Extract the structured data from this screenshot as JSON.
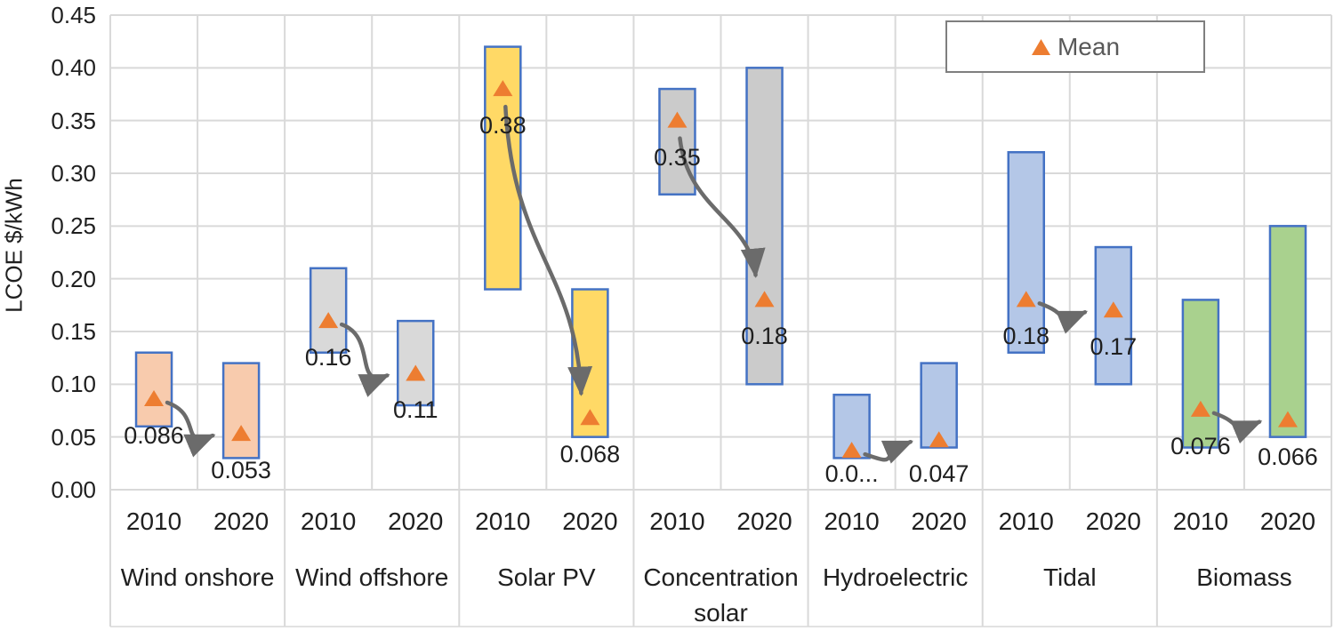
{
  "chart_data": {
    "type": "bar",
    "subtype": "floating-range-columns-with-mean-markers",
    "title": "",
    "ylabel": "LCOE $/kWh",
    "ylim": [
      0,
      0.45
    ],
    "ytick_step": 0.05,
    "ytick_labels": [
      "0.00",
      "0.05",
      "0.10",
      "0.15",
      "0.20",
      "0.25",
      "0.30",
      "0.35",
      "0.40",
      "0.45"
    ],
    "grid": true,
    "legend": {
      "label": "Mean",
      "position": "top-right",
      "marker": "triangle",
      "marker_color": "#ED7D31"
    },
    "years": [
      "2010",
      "2020"
    ],
    "colors": {
      "bar_border": "#4472C4",
      "mean_marker": "#ED7D31",
      "arrow": "#6B6B6B",
      "gridline": "#D9D9D9",
      "text": "#1F1F1F",
      "legend_text": "#595959",
      "legend_border": "#7F7F7F"
    },
    "mean_change_arrows": true,
    "categories": [
      {
        "label": "Wind onshore",
        "fill": "#F8CBAD",
        "bars": [
          {
            "year": "2010",
            "low": 0.06,
            "high": 0.13,
            "mean": 0.086,
            "mean_label": "0.086"
          },
          {
            "year": "2020",
            "low": 0.03,
            "high": 0.12,
            "mean": 0.053,
            "mean_label": "0.053"
          }
        ]
      },
      {
        "label": "Wind offshore",
        "fill": "#D9D9D9",
        "bars": [
          {
            "year": "2010",
            "low": 0.13,
            "high": 0.21,
            "mean": 0.16,
            "mean_label": "0.16"
          },
          {
            "year": "2020",
            "low": 0.08,
            "high": 0.16,
            "mean": 0.11,
            "mean_label": "0.11"
          }
        ]
      },
      {
        "label": "Solar PV",
        "fill": "#FFD966",
        "bars": [
          {
            "year": "2010",
            "low": 0.19,
            "high": 0.42,
            "mean": 0.38,
            "mean_label": "0.38"
          },
          {
            "year": "2020",
            "low": 0.05,
            "high": 0.19,
            "mean": 0.068,
            "mean_label": "0.068"
          }
        ]
      },
      {
        "label": "Concentration solar",
        "fill": "#CBCBCB",
        "bars": [
          {
            "year": "2010",
            "low": 0.28,
            "high": 0.38,
            "mean": 0.35,
            "mean_label": "0.35"
          },
          {
            "year": "2020",
            "low": 0.1,
            "high": 0.4,
            "mean": 0.18,
            "mean_label": "0.18"
          }
        ]
      },
      {
        "label": "Hydroelectric",
        "fill": "#B4C7E7",
        "bars": [
          {
            "year": "2010",
            "low": 0.03,
            "high": 0.09,
            "mean": 0.037,
            "mean_label": "0.0..."
          },
          {
            "year": "2020",
            "low": 0.04,
            "high": 0.12,
            "mean": 0.047,
            "mean_label": "0.047"
          }
        ]
      },
      {
        "label": "Tidal",
        "fill": "#B4C7E7",
        "bars": [
          {
            "year": "2010",
            "low": 0.13,
            "high": 0.32,
            "mean": 0.18,
            "mean_label": "0.18"
          },
          {
            "year": "2020",
            "low": 0.1,
            "high": 0.23,
            "mean": 0.17,
            "mean_label": "0.17"
          }
        ]
      },
      {
        "label": "Biomass",
        "fill": "#A9D18E",
        "bars": [
          {
            "year": "2010",
            "low": 0.04,
            "high": 0.18,
            "mean": 0.076,
            "mean_label": "0.076"
          },
          {
            "year": "2020",
            "low": 0.05,
            "high": 0.25,
            "mean": 0.066,
            "mean_label": "0.066"
          }
        ]
      }
    ]
  }
}
